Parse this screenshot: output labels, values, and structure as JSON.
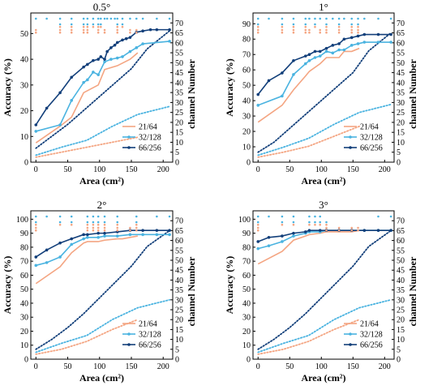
{
  "colors": {
    "s21": "#f4a582",
    "s32": "#4ab3e0",
    "s66": "#123f7a",
    "dot_a": "#f4a582",
    "dot_b": "#4ab3e0",
    "axis": "#000000"
  },
  "shared": {
    "xlabel": "Area (cm²)",
    "ylabel_left": "Accuracy (%)",
    "ylabel_right": "channel Number",
    "x_ticks": [
      0,
      50,
      100,
      150,
      200
    ],
    "right_ticks": [
      0,
      5,
      10,
      15,
      20,
      25,
      30,
      35,
      40,
      45,
      50,
      55,
      60,
      65,
      70
    ],
    "right_lim": [
      0,
      75
    ],
    "legend": [
      "21/64",
      "32/128",
      "66/256"
    ]
  },
  "chart_data": [
    {
      "type": "line",
      "title": "0.5°",
      "xlabel": "Area (cm²)",
      "ylabel": "Accuracy (%)",
      "xlim": [
        -8,
        215
      ],
      "ylim": [
        0,
        58
      ],
      "y_ticks": [
        0,
        10,
        20,
        30,
        40,
        50
      ],
      "series": [
        {
          "name": "21/64",
          "x": [
            0,
            38,
            56,
            75,
            98,
            108,
            128,
            148,
            160
          ],
          "values": [
            7.5,
            14,
            17.5,
            27,
            30,
            36,
            37.5,
            40,
            42.5
          ]
        },
        {
          "name": "32/128",
          "x": [
            0,
            38,
            56,
            75,
            81,
            90,
            98,
            108,
            118,
            128,
            136,
            148,
            158,
            168,
            210
          ],
          "values": [
            12,
            14.5,
            24,
            31,
            32,
            35,
            34,
            39,
            40,
            40.5,
            41,
            43,
            44.5,
            46,
            47
          ]
        },
        {
          "name": "66/256",
          "x": [
            0,
            17,
            38,
            56,
            75,
            81,
            90,
            98,
            102,
            108,
            112,
            118,
            124,
            128,
            136,
            142,
            148,
            158,
            168,
            180,
            190,
            210
          ],
          "values": [
            14.5,
            21,
            27,
            33,
            37,
            38,
            39.5,
            40,
            41,
            40,
            43,
            44.5,
            45.5,
            46.5,
            47.5,
            48,
            48.5,
            50.5,
            51,
            51.5,
            51.5,
            51.5
          ]
        }
      ],
      "channel_series": [
        {
          "name": "21/64",
          "x": [
            0,
            40,
            80,
            120,
            160
          ],
          "values": [
            2.5,
            5,
            7.5,
            10,
            12.5
          ]
        },
        {
          "name": "32/128",
          "x": [
            0,
            40,
            80,
            120,
            160,
            210
          ],
          "values": [
            3.5,
            7.5,
            11,
            18,
            24,
            28
          ]
        },
        {
          "name": "66/256",
          "x": [
            0,
            25,
            50,
            75,
            100,
            125,
            150,
            175,
            210
          ],
          "values": [
            7,
            13,
            19,
            26,
            33,
            40,
            47,
            57,
            66
          ]
        }
      ],
      "markers": [
        {
          "x": [
            0,
            17,
            38,
            56,
            75,
            81,
            90,
            98,
            102,
            108,
            112,
            118,
            124,
            128,
            136,
            148,
            158,
            168,
            190,
            210
          ],
          "rows": [
            "b"
          ]
        },
        {
          "x": [
            38,
            56,
            75,
            81,
            90,
            98,
            102,
            128,
            136
          ],
          "rows": [
            "b",
            "a"
          ]
        },
        {
          "x": [
            0,
            38,
            56,
            75,
            81,
            98,
            108,
            128,
            148,
            158
          ],
          "rows": [
            "a",
            "a"
          ]
        }
      ]
    },
    {
      "type": "line",
      "title": "1°",
      "xlabel": "Area (cm²)",
      "ylabel": "Accuracy (%)",
      "xlim": [
        -8,
        215
      ],
      "ylim": [
        0,
        97
      ],
      "y_ticks": [
        0,
        10,
        20,
        30,
        40,
        50,
        60,
        70,
        80,
        90
      ],
      "series": [
        {
          "name": "21/64",
          "x": [
            0,
            38,
            56,
            75,
            81,
            98,
            108,
            128,
            136,
            148,
            160
          ],
          "values": [
            26,
            37,
            47,
            56,
            59,
            64,
            68,
            68,
            72,
            72,
            74
          ]
        },
        {
          "name": "32/128",
          "x": [
            0,
            38,
            56,
            75,
            81,
            90,
            98,
            108,
            118,
            128,
            136,
            148,
            158,
            168,
            190,
            210
          ],
          "values": [
            37,
            43,
            57,
            64,
            66,
            68,
            69,
            72,
            71,
            73,
            73,
            76,
            77,
            78,
            78,
            78
          ]
        },
        {
          "name": "66/256",
          "x": [
            0,
            17,
            38,
            56,
            75,
            81,
            90,
            98,
            108,
            118,
            128,
            136,
            148,
            158,
            168,
            190,
            210
          ],
          "values": [
            44,
            53,
            58,
            66,
            69,
            70,
            72,
            72,
            74,
            76,
            77,
            80,
            81,
            82,
            83,
            83,
            83
          ]
        }
      ],
      "channel_series": [
        {
          "name": "21/64",
          "x": [
            0,
            40,
            80,
            120,
            160
          ],
          "values": [
            2.5,
            5,
            8,
            13,
            18
          ]
        },
        {
          "name": "32/128",
          "x": [
            0,
            40,
            80,
            120,
            160,
            210
          ],
          "values": [
            3.5,
            7.5,
            12,
            19,
            25,
            29
          ]
        },
        {
          "name": "66/256",
          "x": [
            0,
            25,
            50,
            75,
            100,
            125,
            150,
            175,
            210
          ],
          "values": [
            5,
            10,
            17,
            24,
            31,
            38,
            45,
            56,
            65
          ]
        }
      ],
      "markers": [
        {
          "x": [
            0,
            17,
            38,
            56,
            75,
            81,
            90,
            98,
            108,
            118,
            128,
            136,
            148,
            158,
            168,
            190,
            210
          ],
          "rows": [
            "b"
          ]
        },
        {
          "x": [
            0,
            38,
            56,
            75,
            90,
            108,
            128,
            148,
            158
          ],
          "rows": [
            "b",
            "a"
          ]
        },
        {
          "x": [
            0,
            38,
            56,
            75,
            81,
            98,
            108,
            128,
            148,
            158
          ],
          "rows": [
            "a",
            "a"
          ]
        }
      ]
    },
    {
      "type": "line",
      "title": "2°",
      "xlabel": "Area (cm²)",
      "ylabel": "Accuracy (%)",
      "xlim": [
        -8,
        215
      ],
      "ylim": [
        0,
        106
      ],
      "y_ticks": [
        0,
        10,
        20,
        30,
        40,
        50,
        60,
        70,
        80,
        90,
        100
      ],
      "series": [
        {
          "name": "21/64",
          "x": [
            0,
            38,
            56,
            75,
            81,
            98,
            108,
            128,
            136,
            148,
            160
          ],
          "values": [
            54,
            66,
            76,
            83,
            84,
            84,
            85,
            86,
            86,
            87,
            88
          ]
        },
        {
          "name": "32/128",
          "x": [
            0,
            17,
            38,
            56,
            75,
            81,
            98,
            108,
            128,
            148,
            168,
            190,
            210
          ],
          "values": [
            67,
            69,
            73,
            82,
            86,
            87,
            87,
            88,
            88,
            89,
            89,
            89,
            89
          ]
        },
        {
          "name": "66/256",
          "x": [
            0,
            17,
            38,
            56,
            75,
            81,
            98,
            108,
            128,
            148,
            168,
            190,
            210
          ],
          "values": [
            73,
            78,
            83,
            86,
            89,
            89,
            90,
            90,
            91,
            92,
            92,
            92,
            92
          ]
        }
      ],
      "channel_series": [
        {
          "name": "21/64",
          "x": [
            0,
            40,
            80,
            120,
            160
          ],
          "values": [
            2.5,
            5,
            9,
            15,
            20
          ]
        },
        {
          "name": "32/128",
          "x": [
            0,
            40,
            80,
            120,
            160,
            210
          ],
          "values": [
            3.5,
            8,
            12,
            20,
            26,
            30
          ]
        },
        {
          "name": "66/256",
          "x": [
            0,
            25,
            50,
            75,
            100,
            125,
            150,
            175,
            210
          ],
          "values": [
            5,
            10,
            16,
            23,
            31,
            39,
            47,
            57,
            65
          ]
        }
      ],
      "markers": [
        {
          "x": [
            0,
            17,
            38,
            56,
            81,
            90,
            98,
            108,
            128,
            158,
            190,
            210
          ],
          "rows": [
            "b"
          ]
        },
        {
          "x": [
            0,
            38,
            56,
            81,
            90,
            98,
            108,
            128,
            158
          ],
          "rows": [
            "b",
            "a"
          ]
        },
        {
          "x": [
            0,
            81,
            90,
            98,
            108,
            128,
            148,
            158
          ],
          "rows": [
            "a",
            "a"
          ]
        }
      ]
    },
    {
      "type": "line",
      "title": "3°",
      "xlabel": "Area (cm²)",
      "ylabel": "Accuracy (%)",
      "xlim": [
        -8,
        215
      ],
      "ylim": [
        0,
        106
      ],
      "y_ticks": [
        0,
        10,
        20,
        30,
        40,
        50,
        60,
        70,
        80,
        90,
        100
      ],
      "series": [
        {
          "name": "21/64",
          "x": [
            0,
            38,
            56,
            75,
            81,
            98,
            108,
            128,
            136,
            148,
            160
          ],
          "values": [
            68,
            77,
            85,
            88,
            89,
            90,
            91,
            91,
            91,
            91,
            92
          ]
        },
        {
          "name": "32/128",
          "x": [
            0,
            17,
            38,
            56,
            75,
            81,
            98,
            108,
            128,
            148,
            168,
            190,
            210
          ],
          "values": [
            79,
            81,
            84,
            88,
            90,
            91,
            91,
            92,
            92,
            92,
            92,
            92,
            92
          ]
        },
        {
          "name": "66/256",
          "x": [
            0,
            17,
            38,
            56,
            75,
            81,
            98,
            108,
            128,
            148,
            168,
            190,
            210
          ],
          "values": [
            84,
            87,
            88,
            90,
            91,
            92,
            92,
            92,
            92,
            92,
            92,
            92,
            92
          ]
        }
      ],
      "channel_series": [
        {
          "name": "21/64",
          "x": [
            0,
            40,
            80,
            120,
            160
          ],
          "values": [
            2.5,
            5,
            9,
            15,
            20
          ]
        },
        {
          "name": "32/128",
          "x": [
            0,
            40,
            80,
            120,
            160,
            210
          ],
          "values": [
            3.5,
            8,
            12,
            20,
            26,
            30
          ]
        },
        {
          "name": "66/256",
          "x": [
            0,
            25,
            50,
            75,
            100,
            125,
            150,
            175,
            210
          ],
          "values": [
            5,
            10,
            16,
            23,
            31,
            39,
            47,
            57,
            65
          ]
        }
      ],
      "markers": [
        {
          "x": [
            0,
            17,
            38,
            56,
            81,
            90,
            98,
            190,
            210
          ],
          "rows": [
            "b"
          ]
        },
        {
          "x": [
            0,
            38,
            56,
            81,
            90,
            98,
            108
          ],
          "rows": [
            "b",
            "a"
          ]
        },
        {
          "x": [
            0,
            108,
            128,
            148,
            158
          ],
          "rows": [
            "a",
            "a"
          ]
        }
      ]
    }
  ]
}
